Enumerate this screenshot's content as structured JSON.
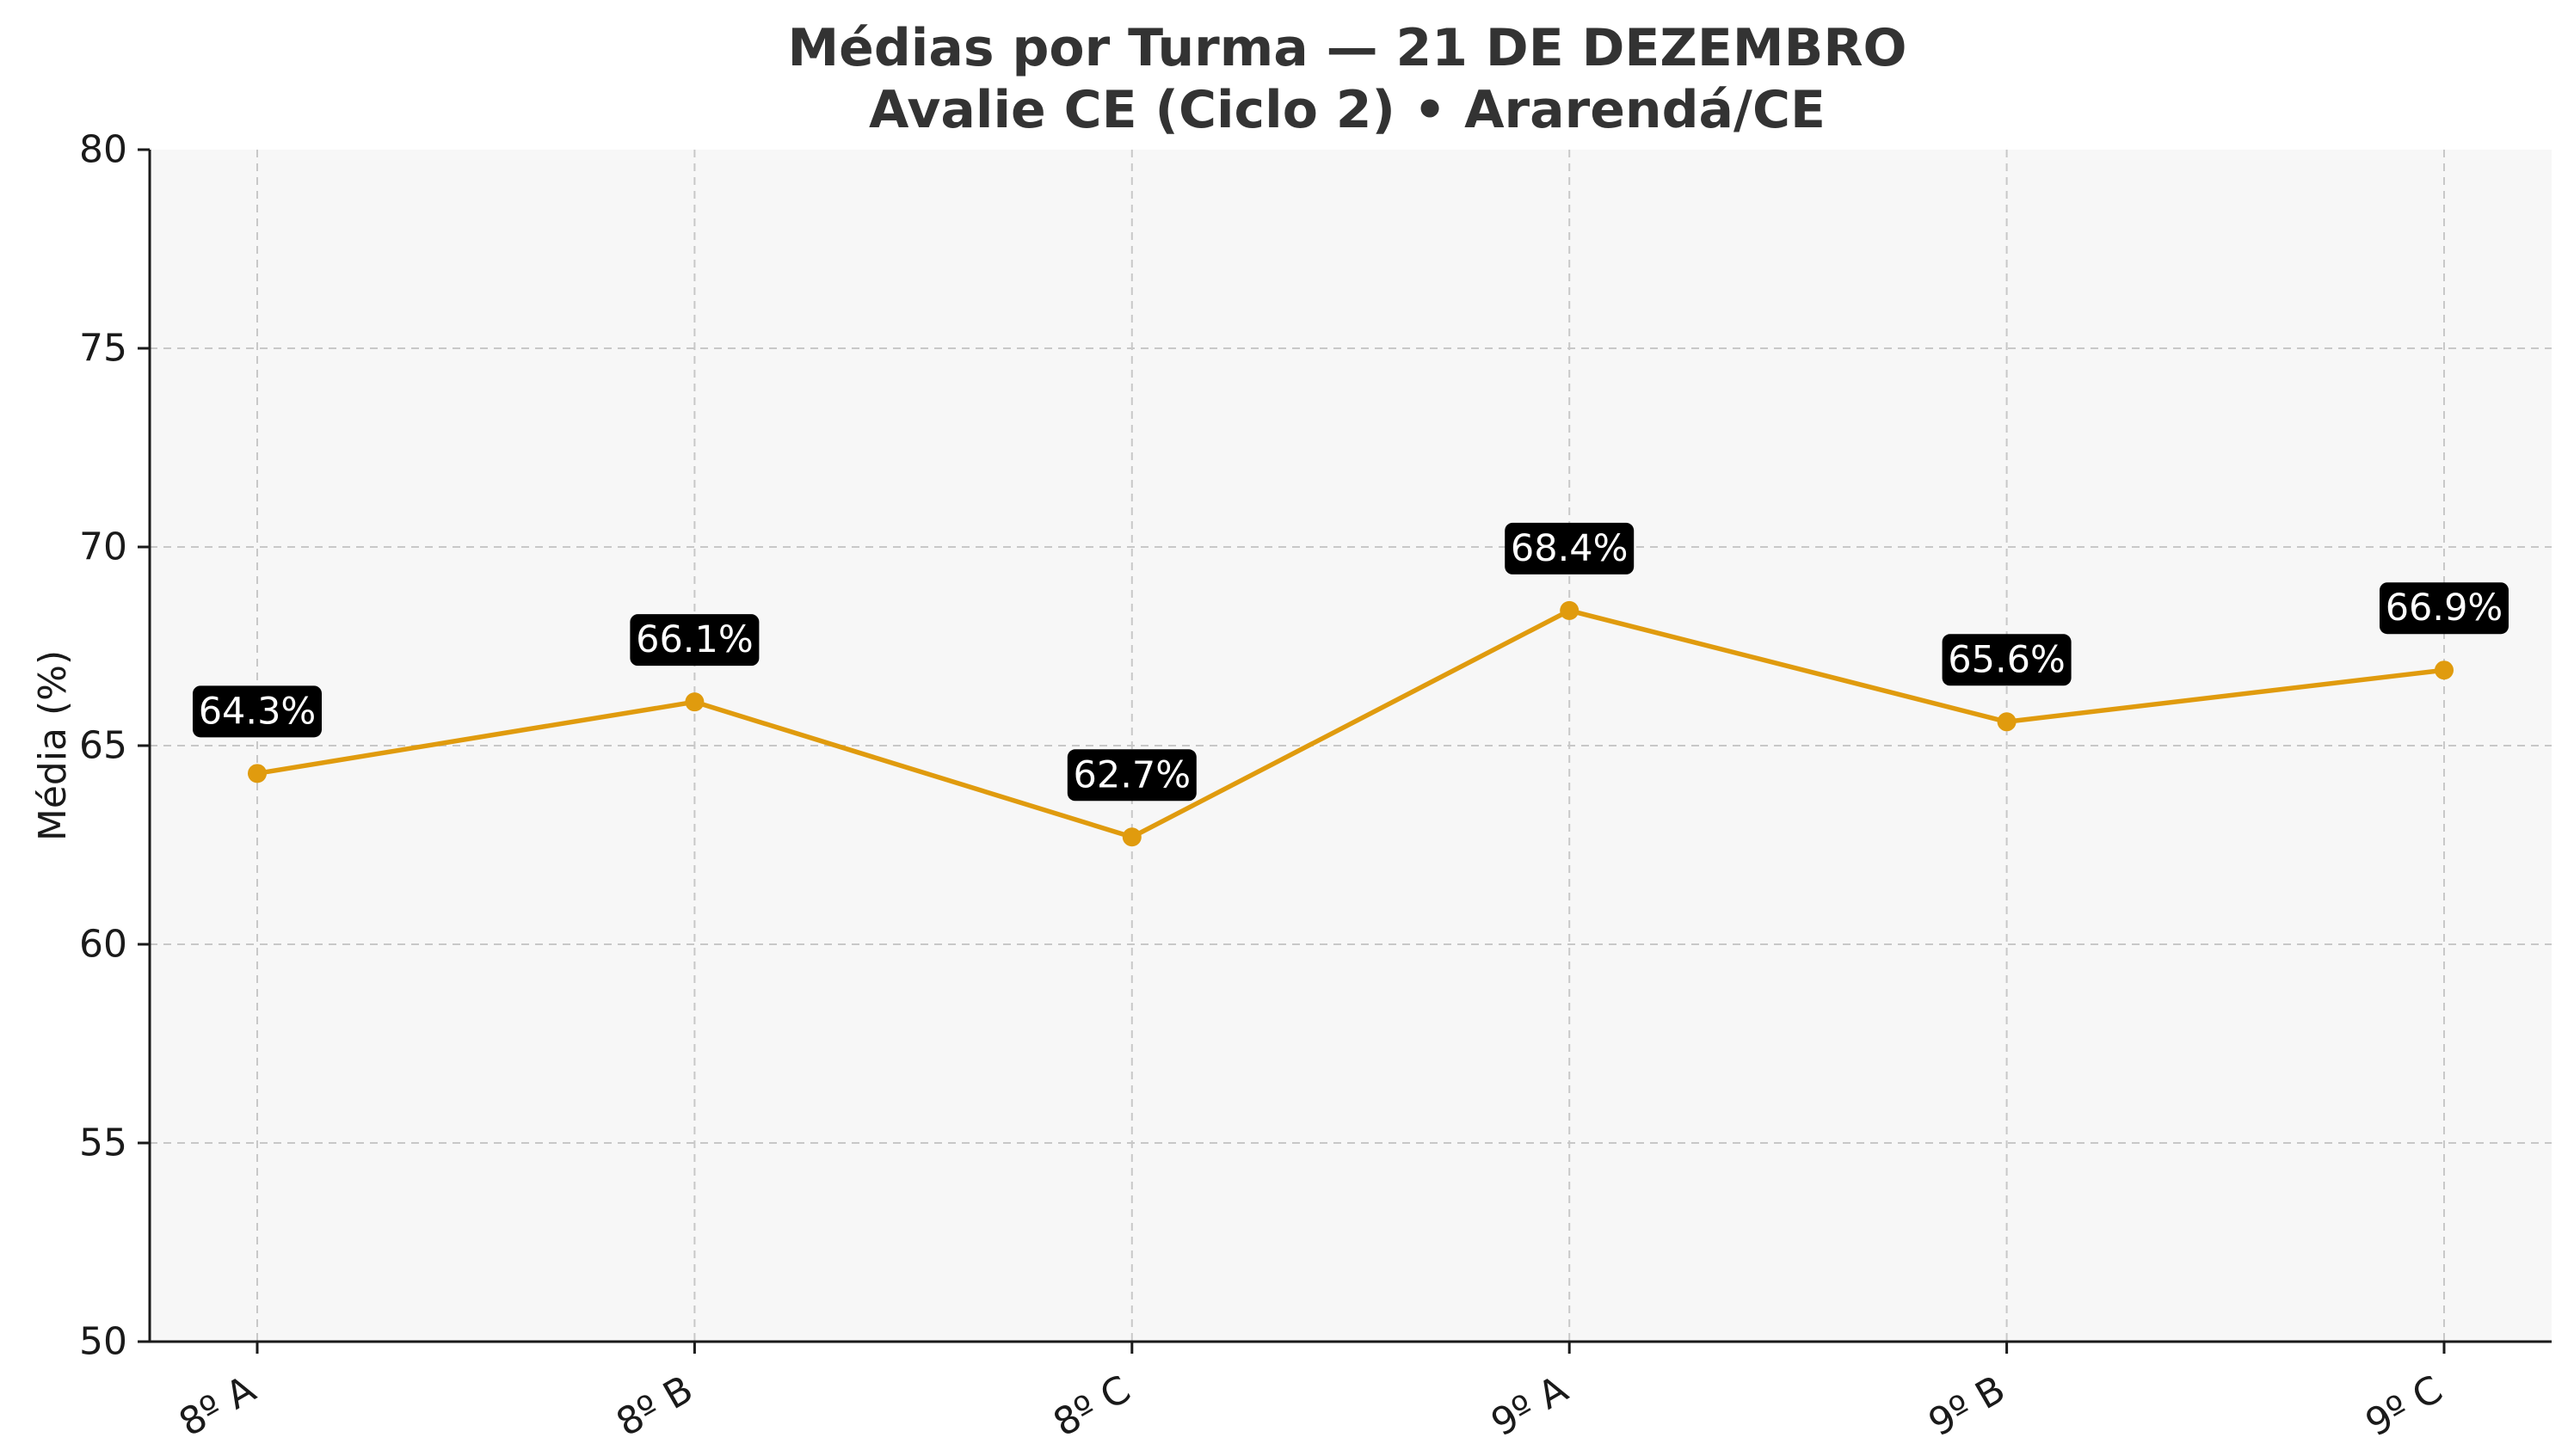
{
  "chart_data": {
    "type": "line",
    "title": "Médias por Turma — 21 DE DEZEMBRO",
    "subtitle": "Avalie CE (Ciclo 2) • Ararendá/CE",
    "xlabel": "",
    "ylabel": "Média (%)",
    "categories": [
      "8º A",
      "8º B",
      "8º C",
      "9º A",
      "9º B",
      "9º C"
    ],
    "series": [
      {
        "values": [
          64.3,
          66.1,
          62.7,
          68.4,
          65.6,
          66.9
        ],
        "color": "#e09b0e"
      }
    ],
    "data_labels": [
      "64.3%",
      "66.1%",
      "62.7%",
      "68.4%",
      "65.6%",
      "66.9%"
    ],
    "ylim": [
      50,
      80
    ],
    "yticks": [
      "50",
      "55",
      "60",
      "65",
      "70",
      "75",
      "80"
    ],
    "grid": true,
    "background_color": "#f7f7f7",
    "label_box_color": "#000000",
    "legend": "none"
  }
}
